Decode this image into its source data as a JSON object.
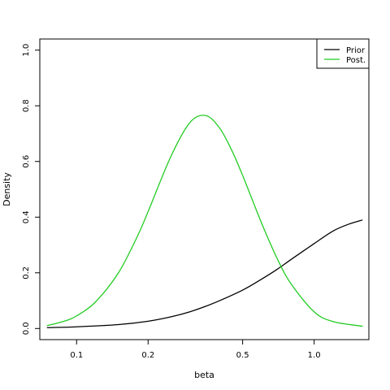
{
  "chart_data": {
    "type": "line",
    "title": "",
    "xlabel": "beta",
    "ylabel": "Density",
    "x_scale": "log",
    "xlim": [
      0.07,
      1.7
    ],
    "ylim": [
      -0.04,
      1.04
    ],
    "x_ticks": [
      0.1,
      0.2,
      0.5,
      1.0
    ],
    "x_tick_labels": [
      "0.1",
      "0.2",
      "0.5",
      "1.0"
    ],
    "y_ticks": [
      0.0,
      0.2,
      0.4,
      0.6,
      0.8,
      1.0
    ],
    "y_tick_labels": [
      "0.0",
      "0.2",
      "0.4",
      "0.6",
      "0.8",
      "1.0"
    ],
    "grid": false,
    "legend_position": "top-right",
    "series": [
      {
        "name": "Prior",
        "color": "#000000",
        "x": [
          0.075,
          0.1,
          0.15,
          0.2,
          0.25,
          0.3,
          0.35,
          0.4,
          0.5,
          0.6,
          0.7,
          0.8,
          1.0,
          1.2,
          1.4,
          1.6
        ],
        "y": [
          0.003,
          0.006,
          0.014,
          0.026,
          0.042,
          0.06,
          0.08,
          0.1,
          0.138,
          0.177,
          0.213,
          0.248,
          0.305,
          0.35,
          0.375,
          0.39
        ]
      },
      {
        "name": "Post.",
        "color": "#22cc22",
        "x": [
          0.075,
          0.09,
          0.1,
          0.12,
          0.15,
          0.18,
          0.2,
          0.25,
          0.3,
          0.35,
          0.4,
          0.45,
          0.5,
          0.6,
          0.7,
          0.8,
          1.0,
          1.2,
          1.6
        ],
        "y": [
          0.01,
          0.028,
          0.045,
          0.095,
          0.2,
          0.33,
          0.42,
          0.62,
          0.74,
          0.765,
          0.72,
          0.64,
          0.55,
          0.38,
          0.25,
          0.16,
          0.06,
          0.025,
          0.008
        ]
      }
    ]
  }
}
